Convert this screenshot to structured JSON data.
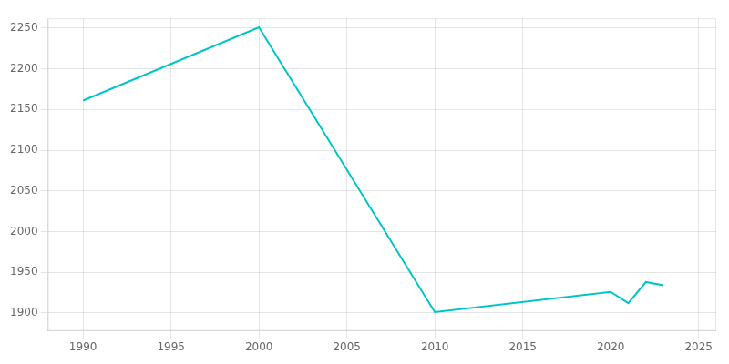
{
  "chart_data": {
    "type": "line",
    "x": [
      1990,
      2000,
      2010,
      2020,
      2021,
      2022,
      2023
    ],
    "values": [
      2161,
      2251,
      1901,
      1926,
      1912,
      1938,
      1934
    ],
    "color": "#00C5C8",
    "xlim": [
      1988,
      2026
    ],
    "ylim": [
      1878,
      2262
    ],
    "xticks": [
      1990,
      1995,
      2000,
      2005,
      2010,
      2015,
      2020,
      2025
    ],
    "yticks": [
      1900,
      1950,
      2000,
      2050,
      2100,
      2150,
      2200,
      2250
    ],
    "grid": true
  }
}
